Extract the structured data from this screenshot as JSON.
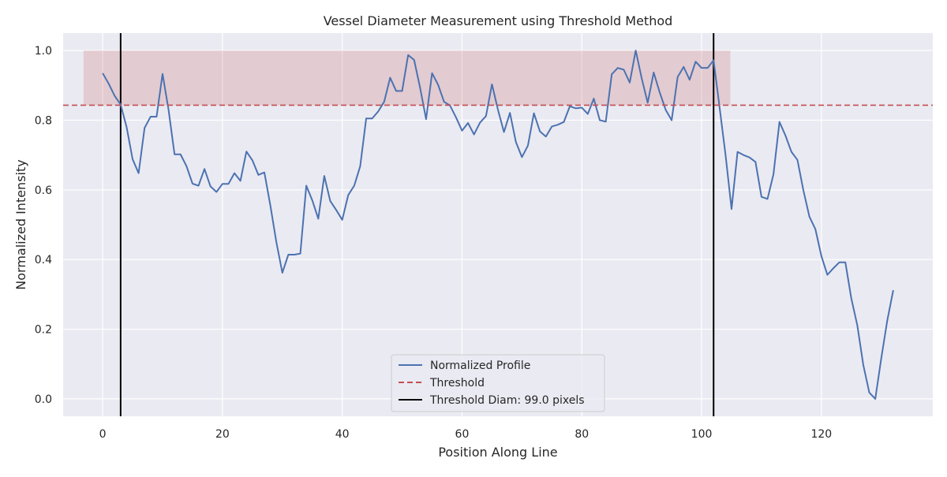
{
  "chart_data": {
    "type": "line",
    "title": "Vessel Diameter Measurement using Threshold Method",
    "xlabel": "Position Along Line",
    "ylabel": "Normalized Intensity",
    "xlim": [
      -6.6,
      138.6
    ],
    "ylim": [
      -0.05,
      1.05
    ],
    "x_ticks": [
      0,
      20,
      40,
      60,
      80,
      100,
      120
    ],
    "y_ticks": [
      0.0,
      0.2,
      0.4,
      0.6,
      0.8,
      1.0
    ],
    "x_tick_labels": [
      "0",
      "20",
      "40",
      "60",
      "80",
      "100",
      "120"
    ],
    "y_tick_labels": [
      "0.0",
      "0.2",
      "0.4",
      "0.6",
      "0.8",
      "1.0"
    ],
    "grid": true,
    "legend_position": "bottom-center",
    "series": [
      {
        "name": "Normalized Profile",
        "color": "#4c72b0",
        "style": "solid",
        "x": [
          0,
          1,
          2,
          3,
          4,
          5,
          6,
          7,
          8,
          9,
          10,
          11,
          12,
          13,
          14,
          15,
          16,
          17,
          18,
          19,
          20,
          21,
          22,
          23,
          24,
          25,
          26,
          27,
          28,
          29,
          30,
          31,
          32,
          33,
          34,
          35,
          36,
          37,
          38,
          39,
          40,
          41,
          42,
          43,
          44,
          45,
          46,
          47,
          48,
          49,
          50,
          51,
          52,
          53,
          54,
          55,
          56,
          57,
          58,
          59,
          60,
          61,
          62,
          63,
          64,
          65,
          66,
          67,
          68,
          69,
          70,
          71,
          72,
          73,
          74,
          75,
          76,
          77,
          78,
          79,
          80,
          81,
          82,
          83,
          84,
          85,
          86,
          87,
          88,
          89,
          90,
          91,
          92,
          93,
          94,
          95,
          96,
          97,
          98,
          99,
          100,
          101,
          102,
          103,
          104,
          105,
          106,
          107,
          108,
          109,
          110,
          111,
          112,
          113,
          114,
          115,
          116,
          117,
          118,
          119,
          120,
          121,
          122,
          123,
          124,
          125,
          126,
          127,
          128,
          129,
          130,
          131,
          132
        ],
        "y": [
          0.935,
          0.905,
          0.87,
          0.845,
          0.78,
          0.688,
          0.648,
          0.778,
          0.81,
          0.81,
          0.933,
          0.83,
          0.702,
          0.702,
          0.668,
          0.618,
          0.612,
          0.66,
          0.61,
          0.594,
          0.617,
          0.617,
          0.648,
          0.626,
          0.71,
          0.685,
          0.643,
          0.65,
          0.555,
          0.45,
          0.362,
          0.414,
          0.414,
          0.417,
          0.612,
          0.57,
          0.517,
          0.64,
          0.568,
          0.542,
          0.514,
          0.585,
          0.612,
          0.668,
          0.805,
          0.805,
          0.825,
          0.853,
          0.922,
          0.884,
          0.884,
          0.987,
          0.973,
          0.893,
          0.803,
          0.935,
          0.902,
          0.853,
          0.842,
          0.808,
          0.77,
          0.792,
          0.759,
          0.793,
          0.812,
          0.903,
          0.83,
          0.766,
          0.821,
          0.737,
          0.694,
          0.727,
          0.82,
          0.768,
          0.753,
          0.782,
          0.787,
          0.795,
          0.84,
          0.834,
          0.836,
          0.818,
          0.862,
          0.8,
          0.796,
          0.932,
          0.95,
          0.945,
          0.908,
          1.0,
          0.92,
          0.85,
          0.937,
          0.88,
          0.83,
          0.8,
          0.924,
          0.953,
          0.916,
          0.968,
          0.95,
          0.95,
          0.972,
          0.837,
          0.7,
          0.545,
          0.709,
          0.7,
          0.693,
          0.68,
          0.58,
          0.574,
          0.645,
          0.795,
          0.756,
          0.709,
          0.686,
          0.598,
          0.523,
          0.487,
          0.41,
          0.356,
          0.375,
          0.392,
          0.392,
          0.288,
          0.211,
          0.097,
          0.018,
          0.0,
          0.117,
          0.225,
          0.312
        ]
      },
      {
        "name": "Threshold",
        "color": "#c44e52",
        "style": "dashed",
        "y_value": 0.843
      },
      {
        "name": "Threshold Diam: 99.0 pixels",
        "color": "#000000",
        "style": "solid",
        "vertical_lines_x": [
          3,
          102
        ]
      }
    ],
    "shaded_region": {
      "x_range": [
        -3.2,
        104.8
      ],
      "y_range": [
        0.843,
        1.0
      ],
      "color": "#c44e52"
    }
  }
}
